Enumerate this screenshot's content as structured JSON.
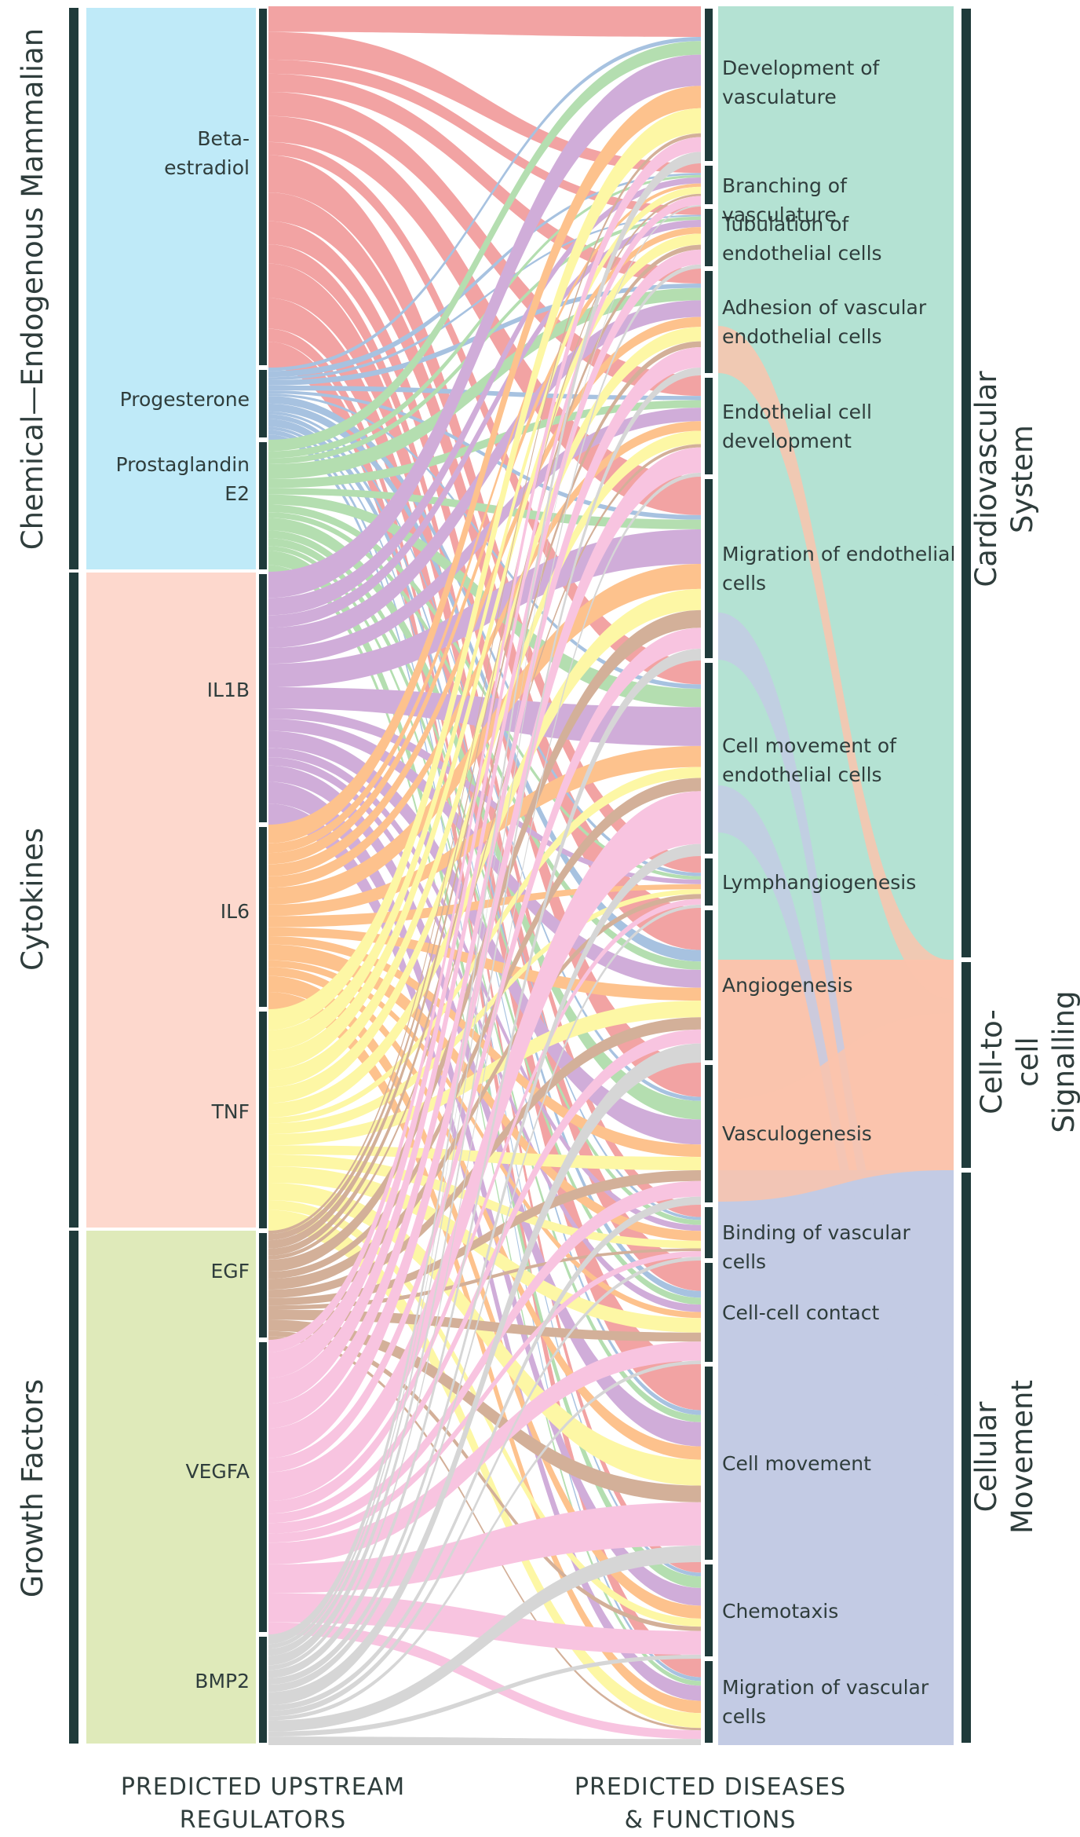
{
  "regulator_groups": [
    {
      "name": "Chemical—Endogenous Mammalian",
      "color": "#bfeaf8"
    },
    {
      "name": "Cytokines",
      "color": "#fdd8cd"
    },
    {
      "name": "Growth Factors",
      "color": "#dfeaba"
    }
  ],
  "regulators": [
    {
      "name": "Beta-\nestradiol",
      "color": "#ef8a8a",
      "group": 0
    },
    {
      "name": "Progesterone",
      "color": "#8fb1d8",
      "group": 0
    },
    {
      "name": "Prostaglandin\nE2",
      "color": "#9fd69b",
      "group": 0
    },
    {
      "name": "IL1B",
      "color": "#c497cf",
      "group": 1
    },
    {
      "name": "IL6",
      "color": "#fdb26e",
      "group": 1
    },
    {
      "name": "TNF",
      "color": "#fdf58d",
      "group": 1
    },
    {
      "name": "EGF",
      "color": "#c79a7d",
      "group": 2
    },
    {
      "name": "VEGFA",
      "color": "#f7b4d8",
      "group": 2
    },
    {
      "name": "BMP2",
      "color": "#cbcbcb",
      "group": 2
    }
  ],
  "functions": [
    "Development of\nvasculature",
    "Branching of vasculature",
    "Tubulation of\nendothelial cells",
    "Adhesion of vascular\nendothelial cells",
    "Endothelial cell\ndevelopment",
    "Migration of endothelial\ncells",
    "Cell movement of\nendothelial cells",
    "Lymphangiogenesis",
    "Angiogenesis",
    "Vasculogenesis",
    "Binding of vascular cells",
    "Cell-cell contact",
    "Cell movement",
    "Chemotaxis",
    "Migration of vascular\ncells"
  ],
  "categories": [
    {
      "name": "Cardiovascular System",
      "color": "#b4e2d3"
    },
    {
      "name": "Cell-to-cell\nSignalling",
      "color": "#fac4ad"
    },
    {
      "name": "Cellular Movement",
      "color": "#c3cbe4"
    }
  ],
  "footer": {
    "left": "PREDICTED UPSTREAM\nREGULATORS",
    "right": "PREDICTED DISEASES\n& FUNCTIONS"
  }
}
